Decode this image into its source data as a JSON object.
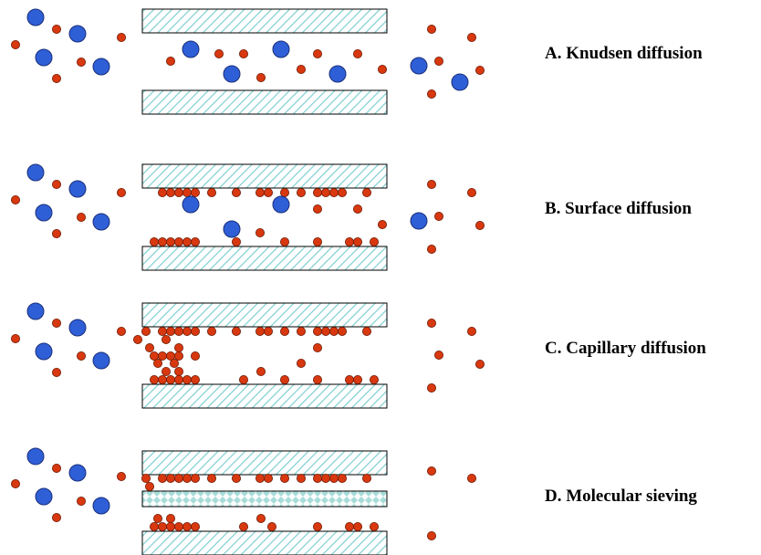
{
  "labels": {
    "a": "A. Knudsen diffusion",
    "b": "B. Surface diffusion",
    "c": "C. Capillary diffusion",
    "d": "D. Molecular sieving"
  },
  "colors": {
    "large_molecule": "#2f5fd6",
    "large_molecule_stroke": "#1a2f7a",
    "small_molecule": "#d8380f",
    "small_molecule_stroke": "#6e1a06",
    "wall_hatch": "#7fcfcf",
    "wall_outline": "#000000",
    "sieve_pattern": "#a8dcd8"
  },
  "icons": {
    "large_molecule": "large-blue-circle",
    "small_molecule": "small-red-circle",
    "pore_wall": "hatched-rectangle",
    "sieve_membrane": "diamond-pattern-rectangle"
  }
}
